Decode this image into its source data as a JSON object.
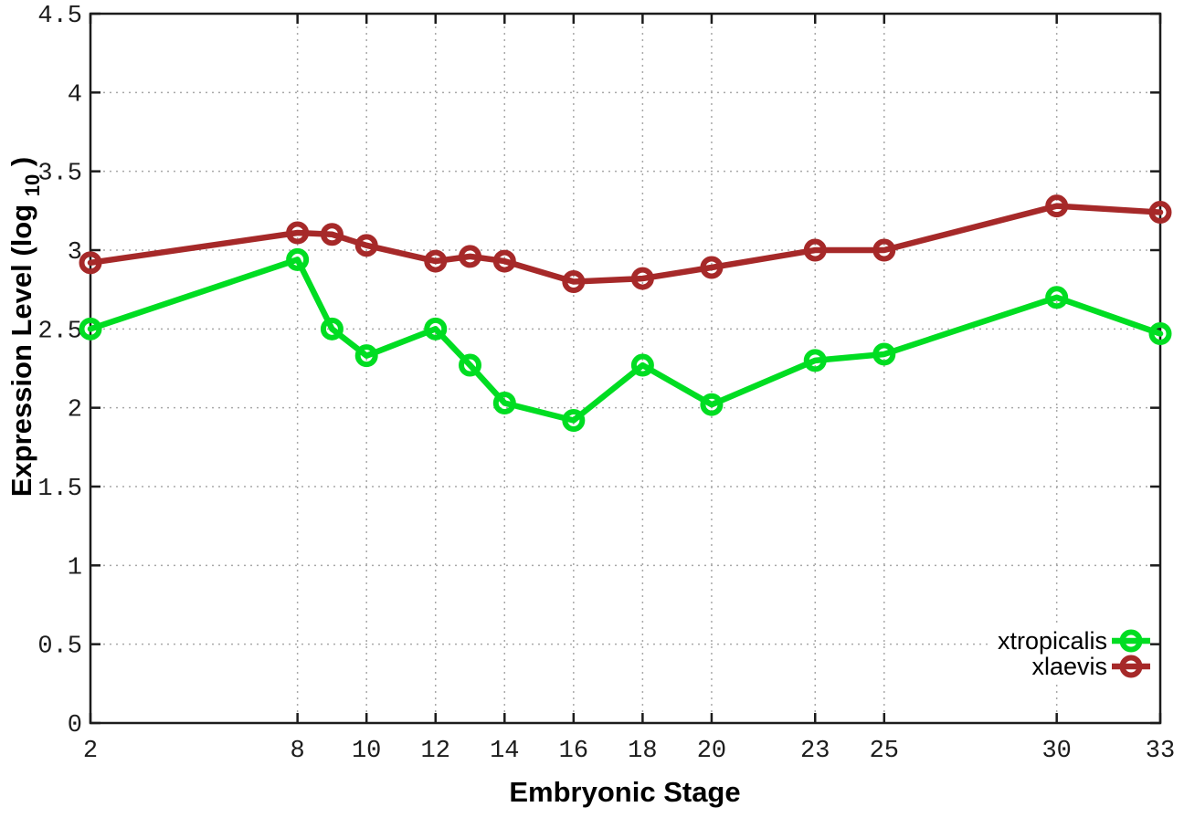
{
  "background_color": "#ffffff",
  "chart_data": {
    "type": "line",
    "title": "",
    "xlabel": "Embryonic Stage",
    "ylabel": "Expression Level (log10)",
    "ylabel_parts": [
      "Expression Level (log",
      "10",
      ")"
    ],
    "x": [
      2,
      8,
      9,
      10,
      12,
      13,
      14,
      16,
      18,
      20,
      23,
      25,
      30,
      33
    ],
    "series": [
      {
        "name": "xtropicalis",
        "color": "#00dd22",
        "marker": "open-circle",
        "values": [
          2.5,
          2.94,
          2.5,
          2.33,
          2.5,
          2.27,
          2.03,
          1.92,
          2.27,
          2.02,
          2.3,
          2.34,
          2.7,
          2.47
        ]
      },
      {
        "name": "xlaevis",
        "color": "#a62929",
        "marker": "open-circle",
        "values": [
          2.92,
          3.11,
          3.1,
          3.03,
          2.93,
          2.96,
          2.93,
          2.8,
          2.82,
          2.89,
          3.0,
          3.0,
          3.28,
          3.24
        ]
      }
    ],
    "xticks": [
      2,
      8,
      10,
      12,
      14,
      16,
      18,
      20,
      23,
      25,
      30,
      33
    ],
    "xtick_labels": [
      "2",
      "8",
      "10",
      "12",
      "14",
      "16",
      "18",
      "20",
      "23",
      "25",
      "30",
      "33"
    ],
    "yticks": [
      0,
      0.5,
      1,
      1.5,
      2,
      2.5,
      3,
      3.5,
      4,
      4.5
    ],
    "ytick_labels": [
      "0",
      "0.5",
      "1",
      "1.5",
      "2",
      "2.5",
      "3",
      "3.5",
      "4",
      "4.5"
    ],
    "xlim": [
      2,
      33
    ],
    "ylim": [
      0,
      4.5
    ],
    "grid": "dotted",
    "grid_color": "#a8a8a8",
    "axis_color": "#1c1c1c",
    "legend_position": "inside-bottom-right"
  }
}
